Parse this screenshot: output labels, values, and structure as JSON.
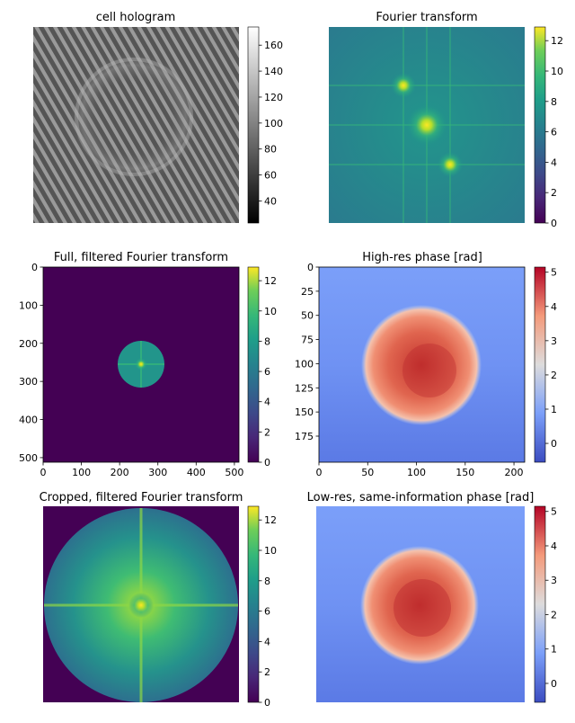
{
  "chart_data": [
    {
      "type": "heatmap",
      "title": "cell hologram",
      "colormap": "gray",
      "content": "interference fringes with a cell",
      "colorbar": {
        "ticks": [
          40,
          60,
          80,
          100,
          120,
          140,
          160
        ],
        "range": [
          23,
          174
        ]
      },
      "axes_visible": false
    },
    {
      "type": "heatmap",
      "title": "Fourier transform",
      "colormap": "viridis",
      "content": "log magnitude spectrum with central peak and two side peaks",
      "colorbar": {
        "ticks": [
          0,
          2,
          4,
          6,
          8,
          10,
          12
        ],
        "range": [
          0,
          12.9
        ]
      },
      "axes_visible": false
    },
    {
      "type": "heatmap",
      "title": "Full, filtered Fourier transform",
      "colormap": "viridis",
      "content": "circular filtered region centred at (256, 256)",
      "xticks": [
        0,
        100,
        200,
        300,
        400,
        500
      ],
      "yticks": [
        0,
        100,
        200,
        300,
        400,
        500
      ],
      "xlim": [
        0,
        512
      ],
      "ylim": [
        512,
        0
      ],
      "colorbar": {
        "ticks": [
          0,
          2,
          4,
          6,
          8,
          10,
          12
        ],
        "range": [
          0,
          12.9
        ]
      }
    },
    {
      "type": "heatmap",
      "title": "High-res phase [rad]",
      "colormap": "coolwarm",
      "content": "phase map of a round cell",
      "xticks": [
        0,
        50,
        100,
        150,
        200
      ],
      "yticks": [
        0,
        25,
        50,
        75,
        100,
        125,
        150,
        175
      ],
      "xlim": [
        0,
        211
      ],
      "ylim": [
        202,
        0
      ],
      "colorbar": {
        "ticks": [
          0,
          1,
          2,
          3,
          4,
          5
        ],
        "range": [
          -0.55,
          5.15
        ]
      }
    },
    {
      "type": "heatmap",
      "title": "Cropped, filtered Fourier transform",
      "colormap": "viridis",
      "content": "cropped circular spectrum, bright centre with cross",
      "colorbar": {
        "ticks": [
          0,
          2,
          4,
          6,
          8,
          10,
          12
        ],
        "range": [
          0,
          12.9
        ]
      },
      "axes_visible": false
    },
    {
      "type": "heatmap",
      "title": "Low-res, same-information phase [rad]",
      "colormap": "coolwarm",
      "content": "pixelated phase map of a round cell",
      "colorbar": {
        "ticks": [
          0,
          1,
          2,
          3,
          4,
          5
        ],
        "range": [
          -0.55,
          5.15
        ]
      },
      "axes_visible": false
    }
  ]
}
